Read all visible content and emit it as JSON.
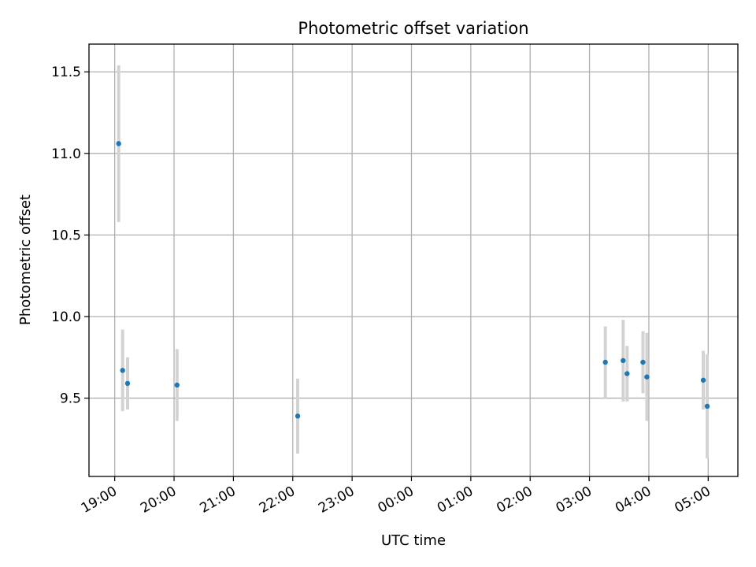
{
  "chart_data": {
    "type": "scatter",
    "title": "Photometric offset variation",
    "xlabel": "UTC time",
    "ylabel": "Photometric offset",
    "x_tick_labels": [
      "19:00",
      "20:00",
      "21:00",
      "22:00",
      "23:00",
      "00:00",
      "01:00",
      "02:00",
      "03:00",
      "04:00",
      "05:00"
    ],
    "y_tick_labels": [
      "9.5",
      "10.0",
      "10.5",
      "11.0",
      "11.5"
    ],
    "y_ticks": [
      9.5,
      10.0,
      10.5,
      11.0,
      11.5
    ],
    "xlim": [
      "18:34",
      "05:30"
    ],
    "ylim": [
      9.02,
      11.67
    ],
    "grid": true,
    "marker_color": "#1f77b4",
    "errorbar_color": "#d3d3d3",
    "points": [
      {
        "time": "19:04",
        "y": 11.06,
        "err": 0.48
      },
      {
        "time": "19:08",
        "y": 9.67,
        "err": 0.25
      },
      {
        "time": "19:13",
        "y": 9.59,
        "err": 0.16
      },
      {
        "time": "20:03",
        "y": 9.58,
        "err": 0.22
      },
      {
        "time": "22:05",
        "y": 9.39,
        "err": 0.23
      },
      {
        "time": "03:16",
        "y": 9.72,
        "err": 0.22
      },
      {
        "time": "03:34",
        "y": 9.73,
        "err": 0.25
      },
      {
        "time": "03:38",
        "y": 9.65,
        "err": 0.17
      },
      {
        "time": "03:54",
        "y": 9.72,
        "err": 0.19
      },
      {
        "time": "03:58",
        "y": 9.63,
        "err": 0.27
      },
      {
        "time": "04:55",
        "y": 9.61,
        "err": 0.18
      },
      {
        "time": "04:59",
        "y": 9.45,
        "err": 0.32
      }
    ]
  }
}
